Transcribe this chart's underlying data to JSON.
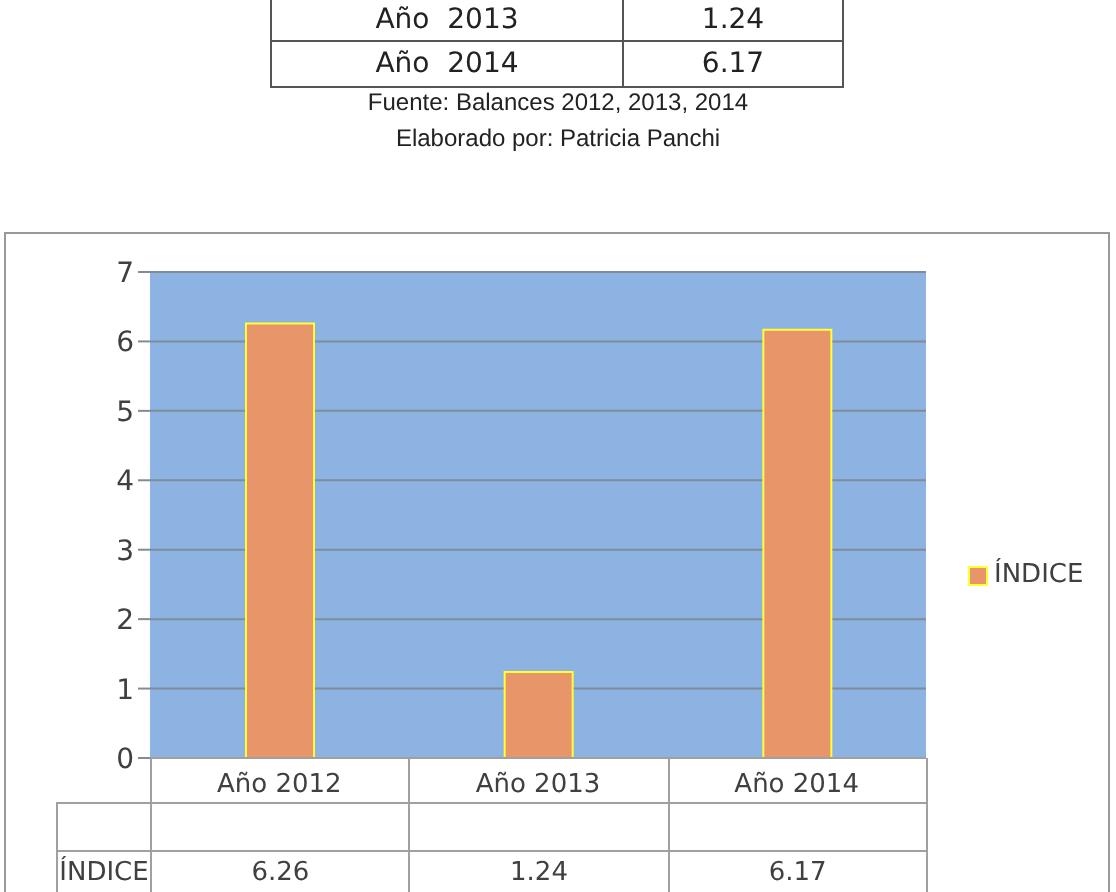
{
  "chart_data": {
    "type": "bar",
    "categories": [
      "Año  2012",
      "Año  2013",
      "Año  2014"
    ],
    "series": [
      {
        "name": "ÍNDICE",
        "color": "#e8956a",
        "values": [
          6.26,
          1.24,
          6.17
        ]
      }
    ],
    "ylim": [
      0,
      7
    ],
    "yticks": [
      0,
      1,
      2,
      3,
      4,
      5,
      6,
      7
    ],
    "grid": "y",
    "legend": "right",
    "data_labels": true,
    "annotations": [
      "Año  2013",
      "1.24",
      "Año  2014",
      "6.17",
      "Fuente: Balances 2012, 2013, 2014",
      "Elaborado por: Patricia Panchi"
    ]
  }
}
